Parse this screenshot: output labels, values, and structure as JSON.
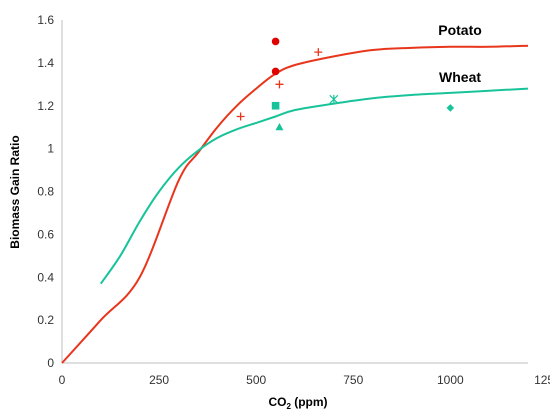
{
  "chart_data": {
    "type": "scatter",
    "xlabel_main": "CO",
    "xlabel_sub": "2",
    "xlabel_suffix": " (ppm)",
    "ylabel": "Biomass Gain Ratio",
    "xlim": [
      0,
      1200
    ],
    "ylim": [
      0,
      1.6
    ],
    "x_ticks": [
      0,
      250,
      500,
      750,
      1000,
      1250
    ],
    "x_tick_labels": [
      "0",
      "250",
      "500",
      "750",
      "1000",
      "1250"
    ],
    "y_ticks": [
      0,
      0.2,
      0.4,
      0.6,
      0.8,
      1.0,
      1.2,
      1.4,
      1.6
    ],
    "y_tick_labels": [
      "0",
      "0.2",
      "0.4",
      "0.6",
      "0.8",
      "1",
      "1.2",
      "1.4",
      "1.6"
    ],
    "grid": false,
    "colors": {
      "potato": "#e8361c",
      "wheat": "#19c39a",
      "dot": "#e00000"
    },
    "curves": [
      {
        "name": "Potato",
        "color": "#e8361c",
        "points": [
          [
            0,
            0
          ],
          [
            100,
            0.2
          ],
          [
            200,
            0.4
          ],
          [
            300,
            0.85
          ],
          [
            350,
            0.98
          ],
          [
            400,
            1.1
          ],
          [
            450,
            1.2
          ],
          [
            500,
            1.28
          ],
          [
            550,
            1.35
          ],
          [
            600,
            1.39
          ],
          [
            700,
            1.43
          ],
          [
            800,
            1.46
          ],
          [
            900,
            1.47
          ],
          [
            1000,
            1.475
          ],
          [
            1100,
            1.475
          ],
          [
            1200,
            1.48
          ]
        ]
      },
      {
        "name": "Wheat",
        "color": "#19c39a",
        "points": [
          [
            100,
            0.37
          ],
          [
            150,
            0.5
          ],
          [
            200,
            0.66
          ],
          [
            250,
            0.8
          ],
          [
            300,
            0.91
          ],
          [
            350,
            0.99
          ],
          [
            400,
            1.05
          ],
          [
            450,
            1.09
          ],
          [
            500,
            1.12
          ],
          [
            550,
            1.15
          ],
          [
            600,
            1.18
          ],
          [
            700,
            1.21
          ],
          [
            800,
            1.235
          ],
          [
            900,
            1.25
          ],
          [
            1000,
            1.26
          ],
          [
            1100,
            1.27
          ],
          [
            1200,
            1.28
          ]
        ]
      }
    ],
    "series_labels": [
      {
        "text": "Potato",
        "x": 1025,
        "y": 1.53
      },
      {
        "text": "Wheat",
        "x": 1025,
        "y": 1.31
      }
    ],
    "markers": [
      {
        "shape": "circle",
        "color": "#e00000",
        "x": 550,
        "y": 1.5
      },
      {
        "shape": "circle",
        "color": "#e00000",
        "x": 550,
        "y": 1.36
      },
      {
        "shape": "plus",
        "color": "#e8361c",
        "x": 660,
        "y": 1.45
      },
      {
        "shape": "plus",
        "color": "#e8361c",
        "x": 560,
        "y": 1.3
      },
      {
        "shape": "plus",
        "color": "#e8361c",
        "x": 460,
        "y": 1.15
      },
      {
        "shape": "square",
        "color": "#19c39a",
        "x": 550,
        "y": 1.2
      },
      {
        "shape": "asterisk",
        "color": "#19c39a",
        "x": 700,
        "y": 1.23
      },
      {
        "shape": "triangle",
        "color": "#19c39a",
        "x": 560,
        "y": 1.1
      },
      {
        "shape": "diamond",
        "color": "#19c39a",
        "x": 1000,
        "y": 1.19
      }
    ]
  }
}
